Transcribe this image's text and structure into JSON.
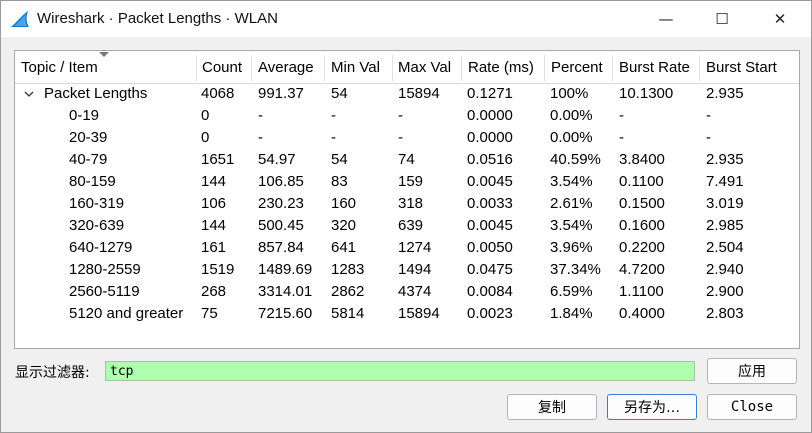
{
  "window": {
    "title": "Wireshark · Packet Lengths · WLAN",
    "minimize_glyph": "—",
    "maximize_glyph": "☐",
    "close_glyph": "✕"
  },
  "table": {
    "columns": [
      "Topic / Item",
      "Count",
      "Average",
      "Min Val",
      "Max Val",
      "Rate (ms)",
      "Percent",
      "Burst Rate",
      "Burst Start"
    ],
    "parent": {
      "label": "Packet Lengths",
      "values": [
        "4068",
        "991.37",
        "54",
        "15894",
        "0.1271",
        "100%",
        "10.1300",
        "2.935"
      ]
    },
    "rows": [
      {
        "label": "0-19",
        "values": [
          "0",
          "-",
          "-",
          "-",
          "0.0000",
          "0.00%",
          "-",
          "-"
        ]
      },
      {
        "label": "20-39",
        "values": [
          "0",
          "-",
          "-",
          "-",
          "0.0000",
          "0.00%",
          "-",
          "-"
        ]
      },
      {
        "label": "40-79",
        "values": [
          "1651",
          "54.97",
          "54",
          "74",
          "0.0516",
          "40.59%",
          "3.8400",
          "2.935"
        ]
      },
      {
        "label": "80-159",
        "values": [
          "144",
          "106.85",
          "83",
          "159",
          "0.0045",
          "3.54%",
          "0.1100",
          "7.491"
        ]
      },
      {
        "label": "160-319",
        "values": [
          "106",
          "230.23",
          "160",
          "318",
          "0.0033",
          "2.61%",
          "0.1500",
          "3.019"
        ]
      },
      {
        "label": "320-639",
        "values": [
          "144",
          "500.45",
          "320",
          "639",
          "0.0045",
          "3.54%",
          "0.1600",
          "2.985"
        ]
      },
      {
        "label": "640-1279",
        "values": [
          "161",
          "857.84",
          "641",
          "1274",
          "0.0050",
          "3.96%",
          "0.2200",
          "2.504"
        ]
      },
      {
        "label": "1280-2559",
        "values": [
          "1519",
          "1489.69",
          "1283",
          "1494",
          "0.0475",
          "37.34%",
          "4.7200",
          "2.940"
        ]
      },
      {
        "label": "2560-5119",
        "values": [
          "268",
          "3314.01",
          "2862",
          "4374",
          "0.0084",
          "6.59%",
          "1.1100",
          "2.900"
        ]
      },
      {
        "label": "5120 and greater",
        "values": [
          "75",
          "7215.60",
          "5814",
          "15894",
          "0.0023",
          "1.84%",
          "0.4000",
          "2.803"
        ]
      }
    ]
  },
  "filter": {
    "label": "显示过滤器:",
    "value": "tcp",
    "apply_label": "应用"
  },
  "buttons": {
    "copy_label": "复制",
    "save_as_label": "另存为…",
    "close_label": "Close"
  },
  "colors": {
    "filter_valid_bg": "#afffaf",
    "default_button_border": "#3b7bd0"
  }
}
